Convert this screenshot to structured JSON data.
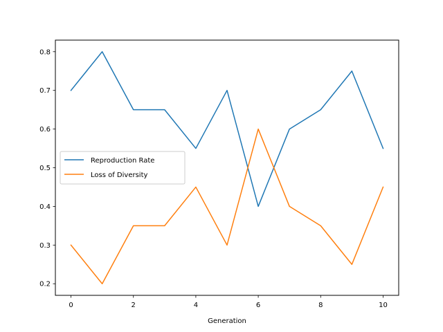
{
  "chart_data": {
    "type": "line",
    "title": "",
    "xlabel": "Generation",
    "ylabel": "",
    "x": [
      0,
      1,
      2,
      3,
      4,
      5,
      6,
      7,
      8,
      9,
      10
    ],
    "xlim": [
      -0.5,
      10.5
    ],
    "ylim": [
      0.17,
      0.83
    ],
    "xticks": [
      0,
      2,
      4,
      6,
      8,
      10
    ],
    "yticks": [
      0.2,
      0.3,
      0.4,
      0.5,
      0.6,
      0.7,
      0.8
    ],
    "grid": false,
    "legend_position": "center-left",
    "series": [
      {
        "name": "Reproduction Rate",
        "color": "#1f77b4",
        "values": [
          0.7,
          0.8,
          0.65,
          0.65,
          0.55,
          0.7,
          0.4,
          0.6,
          0.65,
          0.75,
          0.55
        ]
      },
      {
        "name": "Loss of Diversity",
        "color": "#ff7f0e",
        "values": [
          0.3,
          0.2,
          0.35,
          0.35,
          0.45,
          0.3,
          0.6,
          0.4,
          0.35,
          0.25,
          0.45
        ]
      }
    ]
  }
}
